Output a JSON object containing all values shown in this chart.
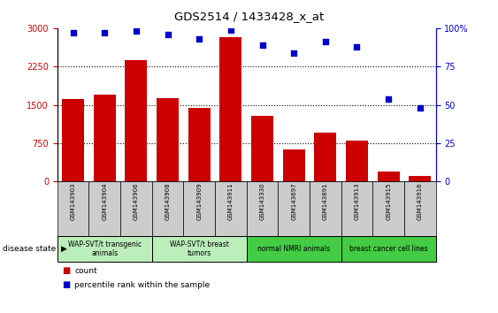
{
  "title": "GDS2514 / 1433428_x_at",
  "samples": [
    "GSM143903",
    "GSM143904",
    "GSM143906",
    "GSM143908",
    "GSM143909",
    "GSM143911",
    "GSM143330",
    "GSM143697",
    "GSM143891",
    "GSM143913",
    "GSM143915",
    "GSM143916"
  ],
  "counts": [
    1620,
    1700,
    2380,
    1630,
    1440,
    2820,
    1280,
    630,
    950,
    800,
    190,
    115
  ],
  "percentiles": [
    97,
    97,
    98,
    96,
    93,
    99,
    89,
    84,
    91,
    88,
    54,
    48
  ],
  "bar_color": "#cc0000",
  "dot_color": "#0000cc",
  "ylim_left": [
    0,
    3000
  ],
  "ylim_right": [
    0,
    100
  ],
  "yticks_left": [
    0,
    750,
    1500,
    2250,
    3000
  ],
  "yticks_right": [
    0,
    25,
    50,
    75,
    100
  ],
  "ytick_labels_right": [
    "0",
    "25",
    "50",
    "75",
    "100%"
  ],
  "groups": [
    {
      "label": "WAP-SVT/t transgenic\nanimals",
      "start": 0,
      "end": 3,
      "color": "#bbeebb"
    },
    {
      "label": "WAP-SVT/t breast\ntumors",
      "start": 3,
      "end": 6,
      "color": "#bbeebb"
    },
    {
      "label": "normal NMRI animals",
      "start": 6,
      "end": 9,
      "color": "#44cc44"
    },
    {
      "label": "breast cancer cell lines",
      "start": 9,
      "end": 12,
      "color": "#44cc44"
    }
  ],
  "disease_state_label": "disease state",
  "legend_count_label": "count",
  "legend_percentile_label": "percentile rank within the sample",
  "background_color": "#ffffff",
  "tick_label_bg": "#cccccc"
}
